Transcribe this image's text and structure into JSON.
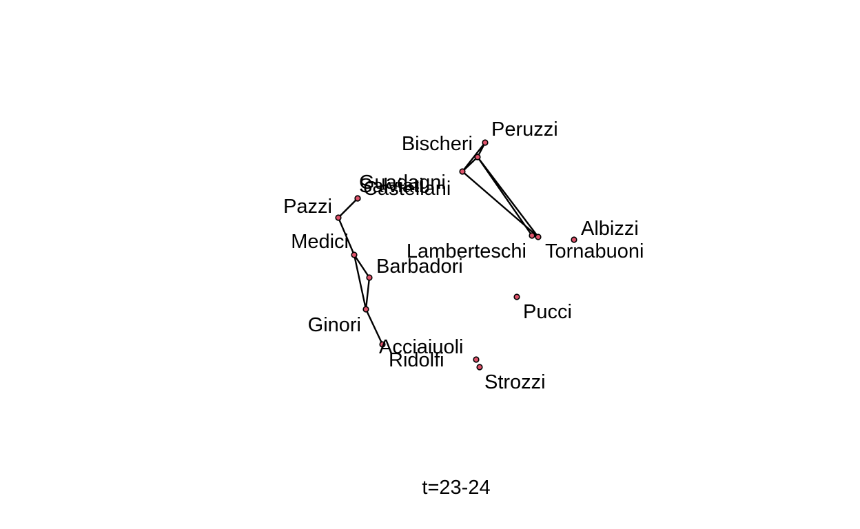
{
  "figure": {
    "caption": "t=23-24",
    "node_fill": "#DF536B",
    "node_stroke": "#000000",
    "edge_color": "#000000"
  },
  "nodes": [
    {
      "id": "peruzzi",
      "label": "Peruzzi"
    },
    {
      "id": "bischeri",
      "label": "Bischeri"
    },
    {
      "id": "guadagni",
      "label": "Guadagni"
    },
    {
      "id": "salviati",
      "label": "Salviati"
    },
    {
      "id": "castellani",
      "label": "Castellani"
    },
    {
      "id": "pazzi",
      "label": "Pazzi"
    },
    {
      "id": "medici",
      "label": "Medici"
    },
    {
      "id": "barbadori",
      "label": "Barbadori"
    },
    {
      "id": "ginori",
      "label": "Ginori"
    },
    {
      "id": "acciaiuoli",
      "label": "Acciaiuoli"
    },
    {
      "id": "ridolfi",
      "label": "Ridolfi"
    },
    {
      "id": "strozzi",
      "label": "Strozzi"
    },
    {
      "id": "pucci",
      "label": "Pucci"
    },
    {
      "id": "lamberteschi",
      "label": "Lamberteschi"
    },
    {
      "id": "tornabuoni",
      "label": "Tornabuoni"
    },
    {
      "id": "albizzi",
      "label": "Albizzi"
    }
  ],
  "edges": [
    {
      "source": "salviati",
      "target": "pazzi"
    },
    {
      "source": "pazzi",
      "target": "medici"
    },
    {
      "source": "medici",
      "target": "barbadori"
    },
    {
      "source": "medici",
      "target": "ginori"
    },
    {
      "source": "barbadori",
      "target": "ginori"
    },
    {
      "source": "ginori",
      "target": "acciaiuoli"
    },
    {
      "source": "peruzzi",
      "target": "bischeri"
    },
    {
      "source": "bischeri",
      "target": "guadagni"
    },
    {
      "source": "peruzzi",
      "target": "guadagni"
    },
    {
      "source": "bischeri",
      "target": "lamberteschi"
    },
    {
      "source": "bischeri",
      "target": "tornabuoni"
    },
    {
      "source": "guadagni",
      "target": "tornabuoni"
    },
    {
      "source": "lamberteschi",
      "target": "tornabuoni"
    }
  ]
}
